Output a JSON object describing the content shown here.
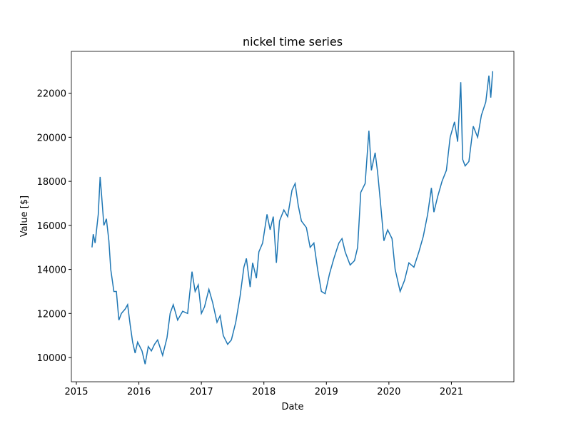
{
  "chart_data": {
    "type": "line",
    "title": "nickel time series",
    "xlabel": "Date",
    "ylabel": "Value [$]",
    "color": "#1f77b4",
    "x": [
      2015.25,
      2015.27,
      2015.3,
      2015.35,
      2015.38,
      2015.4,
      2015.44,
      2015.48,
      2015.52,
      2015.55,
      2015.6,
      2015.64,
      2015.68,
      2015.72,
      2015.78,
      2015.82,
      2015.86,
      2015.9,
      2015.94,
      2015.98,
      2016.05,
      2016.1,
      2016.15,
      2016.2,
      2016.25,
      2016.3,
      2016.38,
      2016.45,
      2016.5,
      2016.55,
      2016.62,
      2016.7,
      2016.78,
      2016.85,
      2016.9,
      2016.95,
      2017.0,
      2017.05,
      2017.12,
      2017.18,
      2017.25,
      2017.3,
      2017.35,
      2017.42,
      2017.48,
      2017.55,
      2017.62,
      2017.68,
      2017.72,
      2017.78,
      2017.82,
      2017.88,
      2017.92,
      2017.98,
      2018.05,
      2018.1,
      2018.15,
      2018.2,
      2018.25,
      2018.32,
      2018.38,
      2018.45,
      2018.5,
      2018.55,
      2018.6,
      2018.68,
      2018.74,
      2018.8,
      2018.86,
      2018.92,
      2018.98,
      2019.05,
      2019.12,
      2019.2,
      2019.25,
      2019.3,
      2019.38,
      2019.45,
      2019.5,
      2019.55,
      2019.62,
      2019.68,
      2019.72,
      2019.78,
      2019.82,
      2019.86,
      2019.92,
      2019.98,
      2020.05,
      2020.1,
      2020.18,
      2020.25,
      2020.32,
      2020.4,
      2020.48,
      2020.55,
      2020.62,
      2020.68,
      2020.72,
      2020.78,
      2020.85,
      2020.92,
      2020.98,
      2021.05,
      2021.1,
      2021.15,
      2021.18,
      2021.22,
      2021.28,
      2021.35,
      2021.42,
      2021.48,
      2021.55,
      2021.6,
      2021.63,
      2021.66
    ],
    "values": [
      15000,
      15600,
      15200,
      16500,
      18200,
      17500,
      16000,
      16300,
      15300,
      14000,
      13000,
      13000,
      11700,
      12000,
      12200,
      12400,
      11500,
      10700,
      10200,
      10700,
      10300,
      9700,
      10500,
      10300,
      10600,
      10800,
      10100,
      10900,
      12000,
      12400,
      11700,
      12100,
      12000,
      13900,
      13000,
      13300,
      12000,
      12300,
      13100,
      12500,
      11600,
      11900,
      11000,
      10600,
      10800,
      11600,
      12800,
      14100,
      14500,
      13200,
      14300,
      13600,
      14800,
      15200,
      16500,
      15800,
      16400,
      14300,
      16200,
      16700,
      16400,
      17600,
      17900,
      16900,
      16200,
      15900,
      15000,
      15200,
      14000,
      13000,
      12900,
      13800,
      14500,
      15200,
      15400,
      14800,
      14200,
      14400,
      15000,
      17500,
      17900,
      20300,
      18500,
      19300,
      18400,
      17200,
      15300,
      15800,
      15400,
      14000,
      13000,
      13500,
      14300,
      14100,
      14800,
      15500,
      16500,
      17700,
      16600,
      17300,
      18000,
      18500,
      20000,
      20700,
      19800,
      22500,
      19000,
      18700,
      18900,
      20500,
      20000,
      21000,
      21600,
      22800,
      21800,
      23000
    ],
    "xlim": [
      2014.92,
      2022.0
    ],
    "xticks": [
      2015,
      2016,
      2017,
      2018,
      2019,
      2020,
      2021
    ],
    "ylim": [
      8900,
      23900
    ],
    "yticks": [
      10000,
      12000,
      14000,
      16000,
      18000,
      20000,
      22000
    ]
  }
}
